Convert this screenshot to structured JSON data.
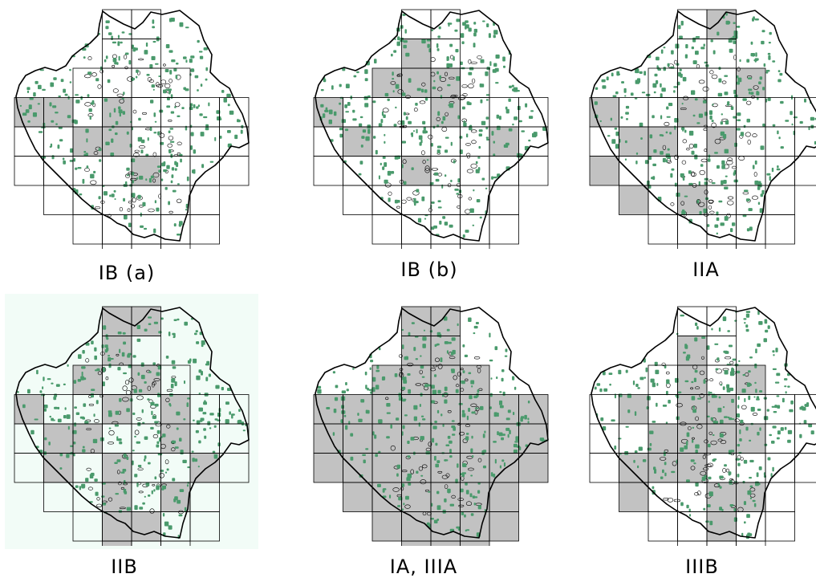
{
  "colors": {
    "shade": "#c2c2c2",
    "site": "#4a9a6c",
    "boundary": "#000000",
    "grid_line": "#000000",
    "background_tint": "#f2fcf7"
  },
  "panels": [
    {
      "caption": "IB (a)",
      "shaded": [
        [
          1,
          5
        ],
        [
          2,
          1
        ],
        [
          3,
          0
        ],
        [
          3,
          1
        ],
        [
          3,
          3
        ],
        [
          4,
          2
        ],
        [
          4,
          3
        ],
        [
          5,
          4
        ]
      ],
      "tinted": false
    },
    {
      "caption": "IB (b)",
      "shaded": [
        [
          1,
          2
        ],
        [
          1,
          3
        ],
        [
          2,
          0
        ],
        [
          2,
          2
        ],
        [
          2,
          3
        ],
        [
          2,
          4
        ],
        [
          3,
          0
        ],
        [
          3,
          4
        ],
        [
          4,
          1
        ],
        [
          4,
          6
        ],
        [
          5,
          3
        ]
      ],
      "tinted": false
    },
    {
      "caption": "IIA",
      "shaded": [
        [
          0,
          4
        ],
        [
          1,
          1
        ],
        [
          1,
          5
        ],
        [
          2,
          5
        ],
        [
          3,
          0
        ],
        [
          3,
          3
        ],
        [
          4,
          1
        ],
        [
          4,
          2
        ],
        [
          4,
          4
        ],
        [
          5,
          0
        ],
        [
          6,
          1
        ],
        [
          6,
          3
        ]
      ],
      "tinted": false
    },
    {
      "caption": "IIB",
      "shaded": [
        [
          0,
          3
        ],
        [
          0,
          4
        ],
        [
          1,
          2
        ],
        [
          1,
          3
        ],
        [
          1,
          5
        ],
        [
          2,
          2
        ],
        [
          2,
          4
        ],
        [
          2,
          6
        ],
        [
          3,
          0
        ],
        [
          3,
          3
        ],
        [
          3,
          5
        ],
        [
          4,
          1
        ],
        [
          4,
          2
        ],
        [
          4,
          5
        ],
        [
          5,
          1
        ],
        [
          5,
          3
        ],
        [
          5,
          6
        ],
        [
          6,
          3
        ],
        [
          6,
          5
        ],
        [
          7,
          3
        ],
        [
          7,
          4
        ],
        [
          8,
          3
        ]
      ],
      "tinted": true
    },
    {
      "caption": "IA, IIIA",
      "shaded": "all",
      "tinted": false
    },
    {
      "caption": "IIIB",
      "shaded": [
        [
          0,
          2
        ],
        [
          1,
          2
        ],
        [
          1,
          3
        ],
        [
          2,
          1
        ],
        [
          2,
          3
        ],
        [
          2,
          5
        ],
        [
          3,
          1
        ],
        [
          3,
          3
        ],
        [
          3,
          4
        ],
        [
          4,
          2
        ],
        [
          4,
          3
        ],
        [
          4,
          4
        ],
        [
          4,
          5
        ],
        [
          5,
          1
        ],
        [
          5,
          2
        ],
        [
          5,
          3
        ],
        [
          6,
          1
        ],
        [
          6,
          4
        ],
        [
          6,
          5
        ],
        [
          7,
          4
        ]
      ],
      "tinted": false
    }
  ]
}
